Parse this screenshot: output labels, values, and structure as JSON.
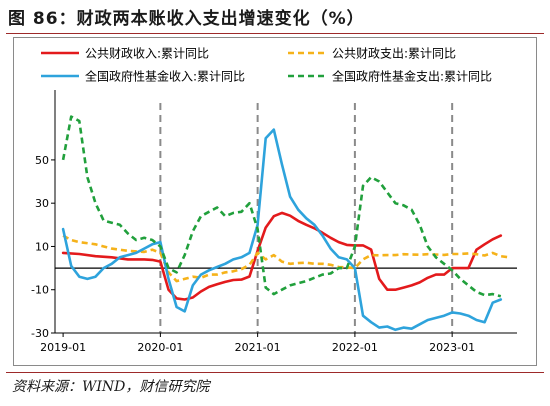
{
  "figure_title": "图 86：财政两本账收入支出增速变化（%）",
  "source_text": "资料来源：WIND，财信研究院",
  "colors": {
    "public_revenue": "#e31a1c",
    "public_expenditure": "#f5b21a",
    "fund_revenue": "#2ea3dc",
    "fund_expenditure": "#21a03c",
    "reference": "#8a8a8a",
    "accent": "#9d2a2a"
  },
  "chart_data": {
    "type": "line",
    "x_type": "month",
    "x_range": [
      "2018-12",
      "2023-09"
    ],
    "ylim": [
      -30,
      80
    ],
    "y_ticks": [
      -30,
      -10,
      10,
      30,
      50
    ],
    "x_ticks": [
      "2019-01",
      "2020-01",
      "2021-01",
      "2022-01",
      "2023-01"
    ],
    "reference_lines_x": [
      "2020-01",
      "2021-01",
      "2022-01",
      "2023-01"
    ],
    "zero_line": true,
    "grid": false,
    "legend_position": "top",
    "series": [
      {
        "name": "公共财政收入:累计同比",
        "key": "public_revenue",
        "dash": "solid",
        "points": [
          [
            "2019-01",
            7
          ],
          [
            "2019-03",
            6.5
          ],
          [
            "2019-05",
            5.5
          ],
          [
            "2019-07",
            5
          ],
          [
            "2019-09",
            4
          ],
          [
            "2019-11",
            4
          ],
          [
            "2019-12",
            3.8
          ],
          [
            "2020-01",
            3
          ],
          [
            "2020-02",
            -10
          ],
          [
            "2020-03",
            -14
          ],
          [
            "2020-04",
            -14.5
          ],
          [
            "2020-05",
            -13.6
          ],
          [
            "2020-06",
            -10.8
          ],
          [
            "2020-07",
            -8.7
          ],
          [
            "2020-08",
            -7.5
          ],
          [
            "2020-09",
            -6.4
          ],
          [
            "2020-10",
            -5.5
          ],
          [
            "2020-11",
            -5.3
          ],
          [
            "2020-12",
            -3.9
          ],
          [
            "2021-01",
            8
          ],
          [
            "2021-02",
            18.7
          ],
          [
            "2021-03",
            24
          ],
          [
            "2021-04",
            25.5
          ],
          [
            "2021-05",
            24.2
          ],
          [
            "2021-06",
            21.8
          ],
          [
            "2021-07",
            20
          ],
          [
            "2021-08",
            18.4
          ],
          [
            "2021-09",
            16.3
          ],
          [
            "2021-10",
            14
          ],
          [
            "2021-11",
            12
          ],
          [
            "2021-12",
            10.7
          ],
          [
            "2022-01",
            10.5
          ],
          [
            "2022-02",
            10.5
          ],
          [
            "2022-03",
            8.6
          ],
          [
            "2022-04",
            -5
          ],
          [
            "2022-05",
            -10
          ],
          [
            "2022-06",
            -10
          ],
          [
            "2022-07",
            -9
          ],
          [
            "2022-08",
            -8
          ],
          [
            "2022-09",
            -6.6
          ],
          [
            "2022-10",
            -4.5
          ],
          [
            "2022-11",
            -3
          ],
          [
            "2022-12",
            -3
          ],
          [
            "2023-01",
            0
          ],
          [
            "2023-02",
            0
          ],
          [
            "2023-03",
            0
          ],
          [
            "2023-04",
            8.5
          ],
          [
            "2023-05",
            11
          ],
          [
            "2023-06",
            13.3
          ],
          [
            "2023-07",
            15
          ]
        ]
      },
      {
        "name": "公共财政支出:累计同比",
        "key": "public_expenditure",
        "dash": "dashed",
        "points": [
          [
            "2019-01",
            15
          ],
          [
            "2019-02",
            13
          ],
          [
            "2019-03",
            12
          ],
          [
            "2019-05",
            11
          ],
          [
            "2019-07",
            9
          ],
          [
            "2019-09",
            8
          ],
          [
            "2019-11",
            7.5
          ],
          [
            "2019-12",
            8.5
          ],
          [
            "2020-01",
            7
          ],
          [
            "2020-02",
            -2
          ],
          [
            "2020-03",
            -6
          ],
          [
            "2020-04",
            -5
          ],
          [
            "2020-05",
            -4
          ],
          [
            "2020-06",
            -4.5
          ],
          [
            "2020-07",
            -3
          ],
          [
            "2020-08",
            -3
          ],
          [
            "2020-09",
            -2
          ],
          [
            "2020-10",
            -1.5
          ],
          [
            "2020-11",
            -0.5
          ],
          [
            "2020-12",
            1.5
          ],
          [
            "2021-01",
            7
          ],
          [
            "2021-02",
            4
          ],
          [
            "2021-03",
            6
          ],
          [
            "2021-04",
            3
          ],
          [
            "2021-05",
            2
          ],
          [
            "2021-06",
            2.3
          ],
          [
            "2021-07",
            2.5
          ],
          [
            "2021-08",
            2
          ],
          [
            "2021-09",
            2
          ],
          [
            "2021-10",
            1.5
          ],
          [
            "2021-11",
            0.5
          ],
          [
            "2021-12",
            0.3
          ],
          [
            "2022-01",
            0
          ],
          [
            "2022-02",
            4
          ],
          [
            "2022-03",
            6
          ],
          [
            "2022-04",
            5.9
          ],
          [
            "2022-05",
            6
          ],
          [
            "2022-06",
            6
          ],
          [
            "2022-07",
            6.4
          ],
          [
            "2022-08",
            6.3
          ],
          [
            "2022-09",
            6.2
          ],
          [
            "2022-10",
            6.4
          ],
          [
            "2022-11",
            6.3
          ],
          [
            "2022-12",
            6.1
          ],
          [
            "2023-01",
            6.5
          ],
          [
            "2023-02",
            6.5
          ],
          [
            "2023-03",
            6.8
          ],
          [
            "2023-04",
            6.4
          ],
          [
            "2023-05",
            5.8
          ],
          [
            "2023-06",
            7
          ],
          [
            "2023-07",
            5.5
          ],
          [
            "2023-08",
            5
          ]
        ]
      },
      {
        "name": "全国政府性基金收入:累计同比",
        "key": "fund_revenue",
        "dash": "solid",
        "points": [
          [
            "2019-01",
            18
          ],
          [
            "2019-02",
            1
          ],
          [
            "2019-03",
            -4
          ],
          [
            "2019-04",
            -5
          ],
          [
            "2019-05",
            -4
          ],
          [
            "2019-06",
            0
          ],
          [
            "2019-07",
            2
          ],
          [
            "2019-08",
            5
          ],
          [
            "2019-09",
            6
          ],
          [
            "2019-10",
            7
          ],
          [
            "2019-11",
            9
          ],
          [
            "2019-12",
            11
          ],
          [
            "2020-01",
            12
          ],
          [
            "2020-02",
            -5
          ],
          [
            "2020-03",
            -18
          ],
          [
            "2020-04",
            -20
          ],
          [
            "2020-05",
            -8
          ],
          [
            "2020-06",
            -3
          ],
          [
            "2020-07",
            -1
          ],
          [
            "2020-08",
            0.5
          ],
          [
            "2020-09",
            2
          ],
          [
            "2020-10",
            4
          ],
          [
            "2020-11",
            5
          ],
          [
            "2020-12",
            7
          ],
          [
            "2021-01",
            20
          ],
          [
            "2021-02",
            60
          ],
          [
            "2021-03",
            64
          ],
          [
            "2021-04",
            48
          ],
          [
            "2021-05",
            33
          ],
          [
            "2021-06",
            27
          ],
          [
            "2021-07",
            23
          ],
          [
            "2021-08",
            20
          ],
          [
            "2021-09",
            15
          ],
          [
            "2021-10",
            9
          ],
          [
            "2021-11",
            5
          ],
          [
            "2021-12",
            4
          ],
          [
            "2022-01",
            0
          ],
          [
            "2022-02",
            -22
          ],
          [
            "2022-03",
            -25
          ],
          [
            "2022-04",
            -27.5
          ],
          [
            "2022-05",
            -27
          ],
          [
            "2022-06",
            -28.5
          ],
          [
            "2022-07",
            -27.5
          ],
          [
            "2022-08",
            -28
          ],
          [
            "2022-09",
            -26
          ],
          [
            "2022-10",
            -24
          ],
          [
            "2022-11",
            -23
          ],
          [
            "2022-12",
            -22
          ],
          [
            "2023-01",
            -20.5
          ],
          [
            "2023-02",
            -21
          ],
          [
            "2023-03",
            -22
          ],
          [
            "2023-04",
            -24
          ],
          [
            "2023-05",
            -25
          ],
          [
            "2023-06",
            -16
          ],
          [
            "2023-07",
            -14.5
          ]
        ]
      },
      {
        "name": "全国政府性基金支出:累计同比",
        "key": "fund_expenditure",
        "dash": "dashed",
        "points": [
          [
            "2019-01",
            50
          ],
          [
            "2019-02",
            70
          ],
          [
            "2019-03",
            68
          ],
          [
            "2019-04",
            42
          ],
          [
            "2019-05",
            30
          ],
          [
            "2019-06",
            22
          ],
          [
            "2019-07",
            21
          ],
          [
            "2019-08",
            20
          ],
          [
            "2019-09",
            16
          ],
          [
            "2019-10",
            13
          ],
          [
            "2019-11",
            14
          ],
          [
            "2019-12",
            13
          ],
          [
            "2020-01",
            10
          ],
          [
            "2020-02",
            0
          ],
          [
            "2020-03",
            -2
          ],
          [
            "2020-04",
            6
          ],
          [
            "2020-05",
            17
          ],
          [
            "2020-06",
            24
          ],
          [
            "2020-07",
            26
          ],
          [
            "2020-08",
            28
          ],
          [
            "2020-09",
            24
          ],
          [
            "2020-10",
            25.5
          ],
          [
            "2020-11",
            26
          ],
          [
            "2020-12",
            30
          ],
          [
            "2021-01",
            18
          ],
          [
            "2021-02",
            -9
          ],
          [
            "2021-03",
            -12
          ],
          [
            "2021-04",
            -10
          ],
          [
            "2021-05",
            -8
          ],
          [
            "2021-06",
            -7
          ],
          [
            "2021-07",
            -6
          ],
          [
            "2021-08",
            -4.5
          ],
          [
            "2021-09",
            -3
          ],
          [
            "2021-10",
            -2.5
          ],
          [
            "2021-11",
            0
          ],
          [
            "2021-12",
            0
          ],
          [
            "2022-01",
            10
          ],
          [
            "2022-02",
            38
          ],
          [
            "2022-03",
            42
          ],
          [
            "2022-04",
            40
          ],
          [
            "2022-05",
            35
          ],
          [
            "2022-06",
            30
          ],
          [
            "2022-07",
            29
          ],
          [
            "2022-08",
            27
          ],
          [
            "2022-09",
            20
          ],
          [
            "2022-10",
            10
          ],
          [
            "2022-11",
            5
          ],
          [
            "2022-12",
            2
          ],
          [
            "2023-01",
            -1
          ],
          [
            "2023-02",
            -5
          ],
          [
            "2023-03",
            -8
          ],
          [
            "2023-04",
            -11
          ],
          [
            "2023-05",
            -12.5
          ],
          [
            "2023-06",
            -12
          ],
          [
            "2023-07",
            -13
          ]
        ]
      }
    ]
  }
}
